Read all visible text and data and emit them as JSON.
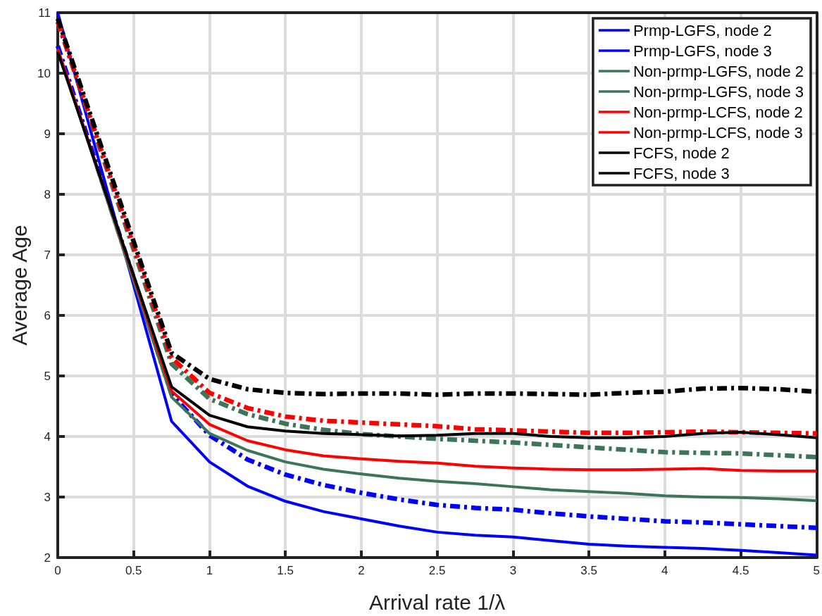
{
  "chart_data": {
    "type": "line",
    "xlabel": "Arrival rate 1/λ",
    "ylabel": "Average Age",
    "x": [
      0,
      0.75,
      1,
      1.25,
      1.5,
      1.75,
      2,
      2.25,
      2.5,
      2.75,
      3,
      3.25,
      3.5,
      3.75,
      4,
      4.25,
      4.5,
      4.75,
      5
    ],
    "series": [
      {
        "name": "Prmp-LGFS, node 2",
        "color": "#0000ff",
        "line_style": "solid",
        "values": [
          11.0,
          4.25,
          3.58,
          3.18,
          2.93,
          2.76,
          2.64,
          2.52,
          2.42,
          2.37,
          2.34,
          2.28,
          2.22,
          2.19,
          2.17,
          2.15,
          2.12,
          2.08,
          2.04
        ]
      },
      {
        "name": "Prmp-LGFS, node 3",
        "color": "#0000ff",
        "line_style": "dashed",
        "values": [
          10.45,
          4.7,
          4.02,
          3.62,
          3.37,
          3.2,
          3.07,
          2.96,
          2.87,
          2.82,
          2.79,
          2.73,
          2.68,
          2.64,
          2.6,
          2.58,
          2.55,
          2.52,
          2.49
        ]
      },
      {
        "name": "Non-prmp-LGFS, node 2",
        "color": "#3d7558",
        "line_style": "solid",
        "values": [
          10.4,
          4.65,
          4.05,
          3.77,
          3.58,
          3.46,
          3.38,
          3.31,
          3.26,
          3.22,
          3.17,
          3.12,
          3.09,
          3.06,
          3.02,
          3.0,
          2.99,
          2.97,
          2.94
        ]
      },
      {
        "name": "Non-prmp-LGFS, node 3",
        "color": "#3d7558",
        "line_style": "dashed",
        "values": [
          10.85,
          5.2,
          4.62,
          4.37,
          4.21,
          4.11,
          4.04,
          4.0,
          3.96,
          3.93,
          3.9,
          3.86,
          3.82,
          3.78,
          3.74,
          3.73,
          3.72,
          3.69,
          3.66
        ]
      },
      {
        "name": "Non-prmp-LCFS, node 2",
        "color": "#ff0000",
        "line_style": "solid",
        "values": [
          10.4,
          4.75,
          4.2,
          3.93,
          3.78,
          3.68,
          3.63,
          3.59,
          3.56,
          3.51,
          3.48,
          3.46,
          3.45,
          3.45,
          3.46,
          3.47,
          3.44,
          3.43,
          3.43
        ]
      },
      {
        "name": "Non-prmp-LCFS, node 3",
        "color": "#ff0000",
        "line_style": "dashed",
        "values": [
          10.85,
          5.3,
          4.72,
          4.47,
          4.33,
          4.26,
          4.23,
          4.2,
          4.17,
          4.12,
          4.1,
          4.08,
          4.06,
          4.06,
          4.07,
          4.08,
          4.07,
          4.06,
          4.05
        ]
      },
      {
        "name": "FCFS, node 2",
        "color": "#000000",
        "line_style": "solid",
        "values": [
          10.35,
          4.82,
          4.35,
          4.16,
          4.09,
          4.05,
          4.03,
          4.01,
          4.02,
          4.05,
          4.05,
          4.0,
          3.98,
          3.98,
          4.0,
          4.05,
          4.07,
          4.03,
          3.98
        ]
      },
      {
        "name": "FCFS, node 3",
        "color": "#000000",
        "line_style": "dashed",
        "values": [
          10.9,
          5.38,
          4.95,
          4.78,
          4.72,
          4.7,
          4.71,
          4.71,
          4.69,
          4.71,
          4.71,
          4.7,
          4.69,
          4.72,
          4.74,
          4.79,
          4.8,
          4.78,
          4.74
        ]
      }
    ],
    "xlim": [
      0,
      5
    ],
    "xticks": [
      0,
      0.5,
      1,
      1.5,
      2,
      2.5,
      3,
      3.5,
      4,
      4.5,
      5
    ],
    "ylim": [
      2,
      11
    ],
    "yticks": [
      2,
      3,
      4,
      5,
      6,
      7,
      8,
      9,
      10,
      11
    ],
    "grid": true,
    "legend": "top right",
    "marker": "none"
  }
}
